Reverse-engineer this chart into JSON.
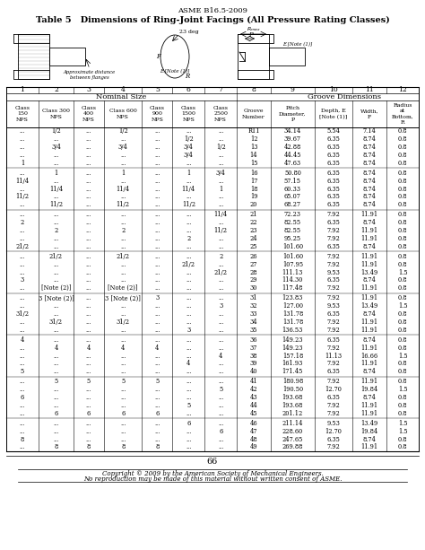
{
  "title_header": "ASME B16.5-2009",
  "table_title": "Table 5   Dimensions of Ring-Joint Facings (All Pressure Rating Classes)",
  "col_group1": "Nominal Size",
  "col_group2": "Groove Dimensions",
  "col_nums": [
    "1",
    "2",
    "3",
    "4",
    "5",
    "6",
    "7",
    "8",
    "9",
    "10",
    "11",
    "12"
  ],
  "sub_headers": [
    "Class\n150\nNPS",
    "Class 300\nNPS",
    "Class\n400\nNPS",
    "Class 600\nNPS",
    "Class\n900\nNPS",
    "Class\n1500\nNPS",
    "Class\n2500\nNPS",
    "Groove\nNumber",
    "Pitch\nDiameter,\nP",
    "Depth, E\n[Note (1)]",
    "Width,\nF",
    "Radius\nat\nBottom,\nR"
  ],
  "rows": [
    [
      "...",
      "1/2",
      "...",
      "1/2",
      "...",
      "...",
      "...",
      "R11",
      "34.14",
      "5.54",
      "7.14",
      "0.8"
    ],
    [
      "...",
      "...",
      "...",
      "...",
      "...",
      "1/2",
      "...",
      "12",
      "39.67",
      "6.35",
      "8.74",
      "0.8"
    ],
    [
      "...",
      "3/4",
      "...",
      "3/4",
      "...",
      "3/4",
      "1/2",
      "13",
      "42.88",
      "6.35",
      "8.74",
      "0.8"
    ],
    [
      "...",
      "...",
      "...",
      "...",
      "...",
      "3/4",
      "...",
      "14",
      "44.45",
      "6.35",
      "8.74",
      "0.8"
    ],
    [
      "1",
      "...",
      "...",
      "...",
      "...",
      "...",
      "...",
      "15",
      "47.63",
      "6.35",
      "8.74",
      "0.8"
    ],
    [
      "...",
      "1",
      "...",
      "1",
      "...",
      "1",
      "3/4",
      "16",
      "50.80",
      "6.35",
      "8.74",
      "0.8"
    ],
    [
      "11/4",
      "...",
      "...",
      "...",
      "...",
      "...",
      "...",
      "17",
      "57.15",
      "6.35",
      "8.74",
      "0.8"
    ],
    [
      "...",
      "11/4",
      "...",
      "11/4",
      "...",
      "11/4",
      "1",
      "18",
      "60.33",
      "6.35",
      "8.74",
      "0.8"
    ],
    [
      "11/2",
      "...",
      "...",
      "...",
      "...",
      "...",
      "...",
      "19",
      "65.07",
      "6.35",
      "8.74",
      "0.8"
    ],
    [
      "...",
      "11/2",
      "...",
      "11/2",
      "...",
      "11/2",
      "...",
      "20",
      "68.27",
      "6.35",
      "8.74",
      "0.8"
    ],
    [
      "...",
      "...",
      "...",
      "...",
      "...",
      "...",
      "11/4",
      "21",
      "72.23",
      "7.92",
      "11.91",
      "0.8"
    ],
    [
      "2",
      "...",
      "...",
      "...",
      "...",
      "...",
      "...",
      "22",
      "82.55",
      "6.35",
      "8.74",
      "0.8"
    ],
    [
      "...",
      "2",
      "...",
      "2",
      "...",
      "...",
      "11/2",
      "23",
      "82.55",
      "7.92",
      "11.91",
      "0.8"
    ],
    [
      "...",
      "...",
      "...",
      "...",
      "...",
      "2",
      "...",
      "24",
      "95.25",
      "7.92",
      "11.91",
      "0.8"
    ],
    [
      "21/2",
      "...",
      "...",
      "...",
      "...",
      "...",
      "...",
      "25",
      "101.60",
      "6.35",
      "8.74",
      "0.8"
    ],
    [
      "...",
      "21/2",
      "...",
      "21/2",
      "...",
      "...",
      "2",
      "26",
      "101.60",
      "7.92",
      "11.91",
      "0.8"
    ],
    [
      "...",
      "...",
      "...",
      "...",
      "...",
      "21/2",
      "...",
      "27",
      "107.95",
      "7.92",
      "11.91",
      "0.8"
    ],
    [
      "...",
      "...",
      "...",
      "...",
      "...",
      "...",
      "21/2",
      "28",
      "111.13",
      "9.53",
      "13.49",
      "1.5"
    ],
    [
      "3",
      "...",
      "...",
      "...",
      "...",
      "...",
      "...",
      "29",
      "114.30",
      "6.35",
      "8.74",
      "0.8"
    ],
    [
      "...",
      "[Note (2)]",
      "...",
      "[Note (2)]",
      "...",
      "...",
      "...",
      "30",
      "117.48",
      "7.92",
      "11.91",
      "0.8"
    ],
    [
      "...",
      "3 [Note (2)]",
      "...",
      "3 [Note (2)]",
      "3",
      "...",
      "...",
      "31",
      "123.83",
      "7.92",
      "11.91",
      "0.8"
    ],
    [
      "...",
      "...",
      "...",
      "...",
      "...",
      "...",
      "3",
      "32",
      "127.00",
      "9.53",
      "13.49",
      "1.5"
    ],
    [
      "31/2",
      "...",
      "...",
      "...",
      "...",
      "...",
      "...",
      "33",
      "131.78",
      "6.35",
      "8.74",
      "0.8"
    ],
    [
      "...",
      "31/2",
      "...",
      "31/2",
      "...",
      "...",
      "...",
      "34",
      "131.78",
      "7.92",
      "11.91",
      "0.8"
    ],
    [
      "...",
      "...",
      "...",
      "...",
      "...",
      "3",
      "...",
      "35",
      "136.53",
      "7.92",
      "11.91",
      "0.8"
    ],
    [
      "4",
      "...",
      "...",
      "...",
      "...",
      "...",
      "...",
      "36",
      "149.23",
      "6.35",
      "8.74",
      "0.8"
    ],
    [
      "...",
      "4",
      "4",
      "4",
      "4",
      "...",
      "...",
      "37",
      "149.23",
      "7.92",
      "11.91",
      "0.8"
    ],
    [
      "...",
      "...",
      "...",
      "...",
      "...",
      "...",
      "4",
      "38",
      "157.18",
      "11.13",
      "16.66",
      "1.5"
    ],
    [
      "...",
      "...",
      "...",
      "...",
      "...",
      "4",
      "...",
      "39",
      "161.93",
      "7.92",
      "11.91",
      "0.8"
    ],
    [
      "5",
      "...",
      "...",
      "...",
      "...",
      "...",
      "...",
      "40",
      "171.45",
      "6.35",
      "8.74",
      "0.8"
    ],
    [
      "...",
      "5",
      "5",
      "5",
      "5",
      "...",
      "...",
      "41",
      "180.98",
      "7.92",
      "11.91",
      "0.8"
    ],
    [
      "...",
      "...",
      "...",
      "...",
      "...",
      "...",
      "5",
      "42",
      "190.50",
      "12.70",
      "19.84",
      "1.5"
    ],
    [
      "6",
      "...",
      "...",
      "...",
      "...",
      "...",
      "...",
      "43",
      "193.68",
      "6.35",
      "8.74",
      "0.8"
    ],
    [
      "...",
      "...",
      "...",
      "...",
      "...",
      "5",
      "...",
      "44",
      "193.68",
      "7.92",
      "11.91",
      "0.8"
    ],
    [
      "...",
      "6",
      "6",
      "6",
      "6",
      "...",
      "...",
      "45",
      "201.12",
      "7.92",
      "11.91",
      "0.8"
    ],
    [
      "...",
      "...",
      "...",
      "...",
      "...",
      "6",
      "...",
      "46",
      "211.14",
      "9.53",
      "13.49",
      "1.5"
    ],
    [
      "...",
      "...",
      "...",
      "...",
      "...",
      "...",
      "6",
      "47",
      "228.60",
      "12.70",
      "19.84",
      "1.5"
    ],
    [
      "8",
      "...",
      "...",
      "...",
      "...",
      "...",
      "...",
      "48",
      "247.65",
      "6.35",
      "8.74",
      "0.8"
    ],
    [
      "...",
      "8",
      "8",
      "8",
      "8",
      "...",
      "...",
      "49",
      "269.88",
      "7.92",
      "11.91",
      "0.8"
    ]
  ],
  "footer": "66",
  "copyright_line1": "Copyright © 2009 by the American Society of Mechanical Engineers.",
  "copyright_line2": "No reproduction may be made of this material without written consent of ASME."
}
